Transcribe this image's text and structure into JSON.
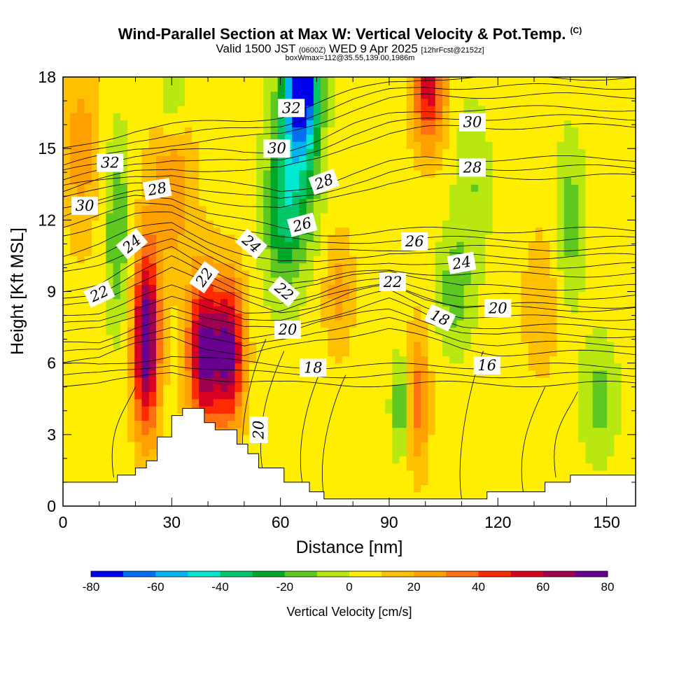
{
  "header": {
    "title_main": "Wind-Parallel Section at Max W: Vertical Velocity & Pot.Temp.",
    "title_copyright": "(C)",
    "valid_prefix": "Valid 1500 JST",
    "valid_utc": "(0600Z)",
    "valid_date": "WED 9 Apr 2025",
    "forecast_info": "[12hrFcst@2152z]",
    "box_info": "boxWmax=112@35.55,139.00,1986m"
  },
  "chart_data": {
    "type": "heatmap",
    "title": "Wind-Parallel Section at Max W: Vertical Velocity & Pot.Temp.",
    "xlabel": "Distance [nm]",
    "ylabel": "Height [Kft MSL]",
    "xlim": [
      0,
      158
    ],
    "ylim": [
      0,
      18
    ],
    "x_ticks": [
      0,
      30,
      60,
      90,
      120,
      150
    ],
    "y_ticks": [
      0,
      3,
      6,
      9,
      12,
      15,
      18
    ],
    "colorbar": {
      "title": "Vertical Velocity [cm/s]",
      "range": [
        -80,
        80
      ],
      "step": 10,
      "tick_labels": [
        -80,
        -60,
        -40,
        -20,
        0,
        20,
        40,
        60,
        80
      ],
      "colors": [
        "#0000f0",
        "#0070f0",
        "#00b4f0",
        "#00e8d0",
        "#00c86a",
        "#00a82a",
        "#5ec820",
        "#b8e810",
        "#ffee00",
        "#ffc000",
        "#ffa000",
        "#ff7010",
        "#ff2a00",
        "#d80020",
        "#a00050",
        "#6a0090"
      ]
    },
    "terrain_kft": [
      [
        0,
        1
      ],
      [
        15,
        1
      ],
      [
        15,
        1.3
      ],
      [
        20,
        1.3
      ],
      [
        20,
        1.6
      ],
      [
        23,
        1.6
      ],
      [
        23,
        1.9
      ],
      [
        26,
        1.9
      ],
      [
        26,
        2.9
      ],
      [
        30,
        2.9
      ],
      [
        30,
        3.8
      ],
      [
        33,
        3.8
      ],
      [
        33,
        4.1
      ],
      [
        39,
        4.1
      ],
      [
        39,
        3.5
      ],
      [
        42,
        3.5
      ],
      [
        42,
        3.2
      ],
      [
        48,
        3.2
      ],
      [
        48,
        2.6
      ],
      [
        51,
        2.6
      ],
      [
        51,
        2.2
      ],
      [
        54,
        2.2
      ],
      [
        54,
        1.6
      ],
      [
        61,
        1.6
      ],
      [
        61,
        1.0
      ],
      [
        68,
        1.0
      ],
      [
        68,
        0.6
      ],
      [
        72,
        0.6
      ],
      [
        72,
        0.3
      ],
      [
        117,
        0.3
      ],
      [
        117,
        0.6
      ],
      [
        133,
        0.6
      ],
      [
        133,
        1.0
      ],
      [
        140,
        1.0
      ],
      [
        140,
        1.3
      ],
      [
        158,
        1.3
      ]
    ],
    "w_field": [
      {
        "x": 23,
        "z": 7.0,
        "w": 80,
        "sx": 3.5,
        "sz": 3.8
      },
      {
        "x": 39,
        "z": 6.5,
        "w": 70,
        "sx": 4.5,
        "sz": 3.2
      },
      {
        "x": 46,
        "z": 6.5,
        "w": 65,
        "sx": 4.0,
        "sz": 3.0
      },
      {
        "x": 30,
        "z": 13.5,
        "w": 25,
        "sx": 6.0,
        "sz": 3.5
      },
      {
        "x": 101,
        "z": 17.5,
        "w": 50,
        "sx": 4.5,
        "sz": 2.5
      },
      {
        "x": 98,
        "z": 4.5,
        "w": 30,
        "sx": 3.0,
        "sz": 3.0
      },
      {
        "x": 76,
        "z": 9.0,
        "w": 20,
        "sx": 4.0,
        "sz": 2.5
      },
      {
        "x": 132,
        "z": 8.5,
        "w": 15,
        "sx": 5.0,
        "sz": 3.0
      },
      {
        "x": 5,
        "z": 15.0,
        "w": 20,
        "sx": 5.0,
        "sz": 4.0
      },
      {
        "x": 66,
        "z": 17.8,
        "w": -80,
        "sx": 4.5,
        "sz": 2.5
      },
      {
        "x": 64,
        "z": 14.5,
        "w": -40,
        "sx": 6.5,
        "sz": 4.0
      },
      {
        "x": 60,
        "z": 11.5,
        "w": -20,
        "sx": 5.0,
        "sz": 3.0
      },
      {
        "x": 15,
        "z": 11.5,
        "w": -25,
        "sx": 3.5,
        "sz": 4.0
      },
      {
        "x": 30,
        "z": 17.0,
        "w": -20,
        "sx": 4.0,
        "sz": 2.0
      },
      {
        "x": 93,
        "z": 4.2,
        "w": -25,
        "sx": 2.5,
        "sz": 2.0
      },
      {
        "x": 108,
        "z": 9.0,
        "w": -20,
        "sx": 5.0,
        "sz": 2.5
      },
      {
        "x": 113,
        "z": 13.5,
        "w": -15,
        "sx": 5.0,
        "sz": 3.5
      },
      {
        "x": 148,
        "z": 4.5,
        "w": -20,
        "sx": 5.0,
        "sz": 2.5
      },
      {
        "x": 140,
        "z": 12.0,
        "w": -20,
        "sx": 4.0,
        "sz": 3.5
      }
    ],
    "theta_contours": [
      {
        "label": "16",
        "z": [
          5.5,
          5.5,
          5.7,
          6.0,
          5.8,
          5.6,
          5.5,
          5.5,
          5.5,
          5.5,
          5.5,
          5.5,
          5.5,
          5.5,
          5.5,
          5.5
        ]
      },
      {
        "label": "18",
        "z": [
          6.4,
          6.5,
          7.2,
          7.6,
          7.0,
          6.6,
          7.0,
          7.4,
          7.6,
          7.8,
          7.4,
          7.0,
          6.8,
          6.8,
          6.8,
          6.8
        ]
      },
      {
        "label": "20",
        "z": [
          7.6,
          7.8,
          8.4,
          8.8,
          8.2,
          7.8,
          7.9,
          8.3,
          8.6,
          9.0,
          8.4,
          8.0,
          7.9,
          7.9,
          7.9,
          7.9
        ]
      },
      {
        "label": "22",
        "z": [
          8.7,
          9.0,
          9.8,
          10.4,
          9.6,
          9.0,
          8.6,
          8.8,
          9.3,
          9.6,
          9.2,
          8.8,
          8.8,
          8.8,
          8.8,
          8.8
        ]
      },
      {
        "label": "24",
        "z": [
          10.2,
          10.6,
          11.2,
          11.5,
          10.8,
          10.2,
          9.8,
          9.8,
          10.1,
          10.3,
          10.2,
          10.1,
          10.1,
          10.1,
          10.1,
          10.1
        ]
      },
      {
        "label": "26",
        "z": [
          11.8,
          12.2,
          12.6,
          12.6,
          12.0,
          11.6,
          11.2,
          11.0,
          11.1,
          11.2,
          11.2,
          11.2,
          11.2,
          11.2,
          11.2,
          11.2
        ]
      },
      {
        "label": "28",
        "z": [
          13.0,
          13.2,
          13.5,
          13.6,
          13.3,
          13.0,
          12.8,
          13.1,
          13.6,
          14.0,
          14.2,
          14.2,
          14.2,
          14.2,
          14.2,
          14.2
        ]
      },
      {
        "label": "30",
        "z": [
          13.6,
          14.0,
          14.4,
          14.6,
          14.5,
          14.4,
          14.5,
          15.0,
          15.6,
          16.0,
          16.2,
          16.3,
          16.3,
          16.3,
          16.3,
          16.3
        ]
      },
      {
        "label": "32",
        "z": [
          14.6,
          15.0,
          15.4,
          15.6,
          15.7,
          15.8,
          16.0,
          16.5,
          17.0,
          17.4,
          17.6,
          17.6,
          17.6,
          17.6,
          17.6,
          17.6
        ]
      }
    ],
    "theta_x": [
      0,
      10,
      20,
      30,
      40,
      50,
      60,
      70,
      80,
      90,
      100,
      110,
      120,
      130,
      140,
      158
    ],
    "contour_labels": [
      {
        "text": "32",
        "x": 13,
        "z": 14.4,
        "rot": 0
      },
      {
        "text": "30",
        "x": 6,
        "z": 12.6,
        "rot": 0
      },
      {
        "text": "28",
        "x": 26,
        "z": 13.3,
        "rot": -10
      },
      {
        "text": "24",
        "x": 19,
        "z": 11.0,
        "rot": -40
      },
      {
        "text": "22",
        "x": 10,
        "z": 8.9,
        "rot": -25
      },
      {
        "text": "22",
        "x": 39,
        "z": 9.6,
        "rot": -55
      },
      {
        "text": "24",
        "x": 52,
        "z": 11.0,
        "rot": 40
      },
      {
        "text": "22",
        "x": 61,
        "z": 9.0,
        "rot": 40
      },
      {
        "text": "20",
        "x": 62,
        "z": 7.4,
        "rot": 0
      },
      {
        "text": "18",
        "x": 69,
        "z": 5.8,
        "rot": 0
      },
      {
        "text": "20",
        "x": 54,
        "z": 3.2,
        "rot": -90
      },
      {
        "text": "32",
        "x": 63,
        "z": 16.7,
        "rot": 0
      },
      {
        "text": "30",
        "x": 59,
        "z": 15.0,
        "rot": 0
      },
      {
        "text": "28",
        "x": 72,
        "z": 13.6,
        "rot": -20
      },
      {
        "text": "26",
        "x": 66,
        "z": 11.8,
        "rot": -15
      },
      {
        "text": "26",
        "x": 97,
        "z": 11.1,
        "rot": 0
      },
      {
        "text": "22",
        "x": 91,
        "z": 9.4,
        "rot": 0
      },
      {
        "text": "24",
        "x": 110,
        "z": 10.2,
        "rot": -10
      },
      {
        "text": "18",
        "x": 104,
        "z": 7.9,
        "rot": 25
      },
      {
        "text": "20",
        "x": 120,
        "z": 8.3,
        "rot": 0
      },
      {
        "text": "16",
        "x": 117,
        "z": 5.9,
        "rot": 0
      },
      {
        "text": "30",
        "x": 113,
        "z": 16.1,
        "rot": 0
      },
      {
        "text": "28",
        "x": 113,
        "z": 14.2,
        "rot": 0
      }
    ]
  }
}
